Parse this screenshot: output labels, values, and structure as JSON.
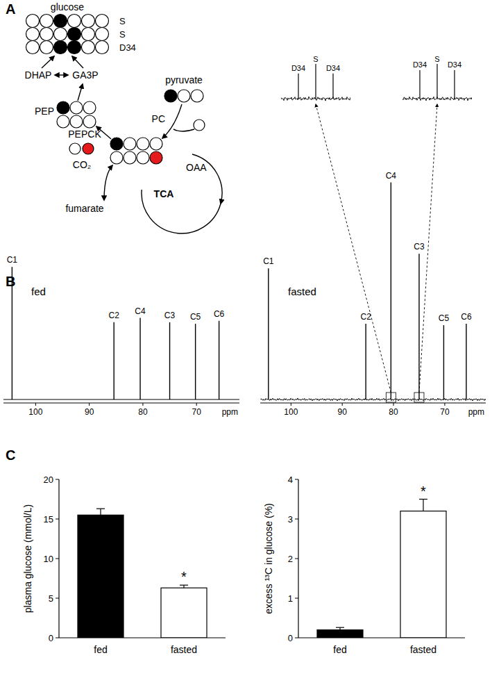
{
  "panel_labels": [
    "A",
    "B",
    "C"
  ],
  "diagram": {
    "atom_colors": {
      "o": "#ffffff",
      "k": "#000000",
      "r": "#e41a1c"
    },
    "molecules": [
      {
        "label": "glucose",
        "rows": [
          {
            "atoms": [
              "o",
              "o",
              "k",
              "o",
              "o",
              "o"
            ],
            "tag": "S"
          },
          {
            "atoms": [
              "o",
              "o",
              "o",
              "k",
              "o",
              "o"
            ],
            "tag": "S"
          },
          {
            "atoms": [
              "o",
              "o",
              "k",
              "k",
              "o",
              "o"
            ],
            "tag": "D34"
          }
        ]
      },
      {
        "label": "PEP",
        "rows": [
          {
            "atoms": [
              "k",
              "o",
              "o"
            ]
          },
          {
            "atoms": [
              "o",
              "o",
              "o"
            ]
          }
        ]
      },
      {
        "label": "pyruvate",
        "rows": [
          {
            "atoms": [
              "k",
              "o",
              "o"
            ]
          }
        ]
      },
      {
        "label": "OAA",
        "rows": [
          {
            "atoms": [
              "k",
              "o",
              "o",
              "o"
            ]
          },
          {
            "atoms": [
              "o",
              "o",
              "o",
              "r"
            ]
          }
        ]
      },
      {
        "label": "CO₂",
        "rows": [
          {
            "atoms": [
              "o",
              "r"
            ]
          }
        ]
      },
      {
        "rows": [
          {
            "atoms": [
              "o"
            ]
          }
        ]
      }
    ],
    "labels": {
      "dhap": "DHAP",
      "ga3p": "GA3P",
      "pc": "PC",
      "pepck": "PEPCK",
      "tca": "TCA",
      "fumarate": "fumarate"
    }
  },
  "chart_data": [
    {
      "type": "spectrum",
      "title": "fed",
      "x": [
        104.4,
        85.4,
        80.5,
        75.0,
        70.2,
        65.8
      ],
      "values": [
        91,
        53,
        56,
        53,
        52,
        54
      ],
      "labels": [
        "C1",
        "C2",
        "C4",
        "C3",
        "C5",
        "C6"
      ],
      "xlim": [
        106,
        62
      ],
      "xticks": [
        100,
        90,
        80,
        70
      ],
      "xlabel": "ppm",
      "ylim": [
        0,
        155
      ],
      "tick_labels": "x",
      "line_style": "solid"
    },
    {
      "type": "spectrum",
      "title": "fasted",
      "x": [
        104.4,
        85.4,
        80.5,
        75.0,
        70.2,
        65.8
      ],
      "values": [
        90,
        52,
        149,
        100,
        51,
        52
      ],
      "labels": [
        "C1",
        "C2",
        "C4",
        "C3",
        "C5",
        "C6"
      ],
      "xlim": [
        106,
        62
      ],
      "xticks": [
        100,
        90,
        80,
        70
      ],
      "xlabel": "ppm",
      "ylim": [
        0,
        155
      ],
      "tick_labels": "x",
      "line_style": "noisy",
      "insets": [
        {
          "peak": "C4",
          "labels": [
            "D34",
            "S",
            "D34"
          ],
          "x": [
            -1,
            0,
            1
          ],
          "values": [
            40,
            100,
            40
          ],
          "xlim": [
            -2,
            2
          ],
          "ylim": [
            0,
            55
          ]
        },
        {
          "peak": "C3",
          "labels": [
            "D34",
            "S",
            "D34"
          ],
          "x": [
            -1,
            0,
            1
          ],
          "values": [
            45,
            100,
            45
          ],
          "xlim": [
            -2,
            2
          ],
          "ylim": [
            0,
            55
          ]
        }
      ]
    },
    {
      "type": "bar",
      "categories": [
        "fed",
        "fasted"
      ],
      "values": [
        15.5,
        6.3
      ],
      "errors": [
        0.8,
        0.35
      ],
      "colors": [
        "#000000",
        "#ffffff"
      ],
      "ylabel": "plasma glucose (mmol/L)",
      "ylim": [
        0,
        20
      ],
      "yticks": [
        0,
        5,
        10,
        15,
        20
      ],
      "annotations": [
        {
          "category": "fasted",
          "text": "*"
        }
      ]
    },
    {
      "type": "bar",
      "categories": [
        "fed",
        "fasted"
      ],
      "values": [
        0.2,
        3.2
      ],
      "errors": [
        0.06,
        0.3
      ],
      "colors": [
        "#000000",
        "#ffffff"
      ],
      "ylabel": "excess ¹³C in glucose (%)",
      "ylim": [
        0,
        4
      ],
      "yticks": [
        0,
        1,
        2,
        3,
        4
      ],
      "annotations": [
        {
          "category": "fasted",
          "text": "*"
        }
      ]
    }
  ]
}
